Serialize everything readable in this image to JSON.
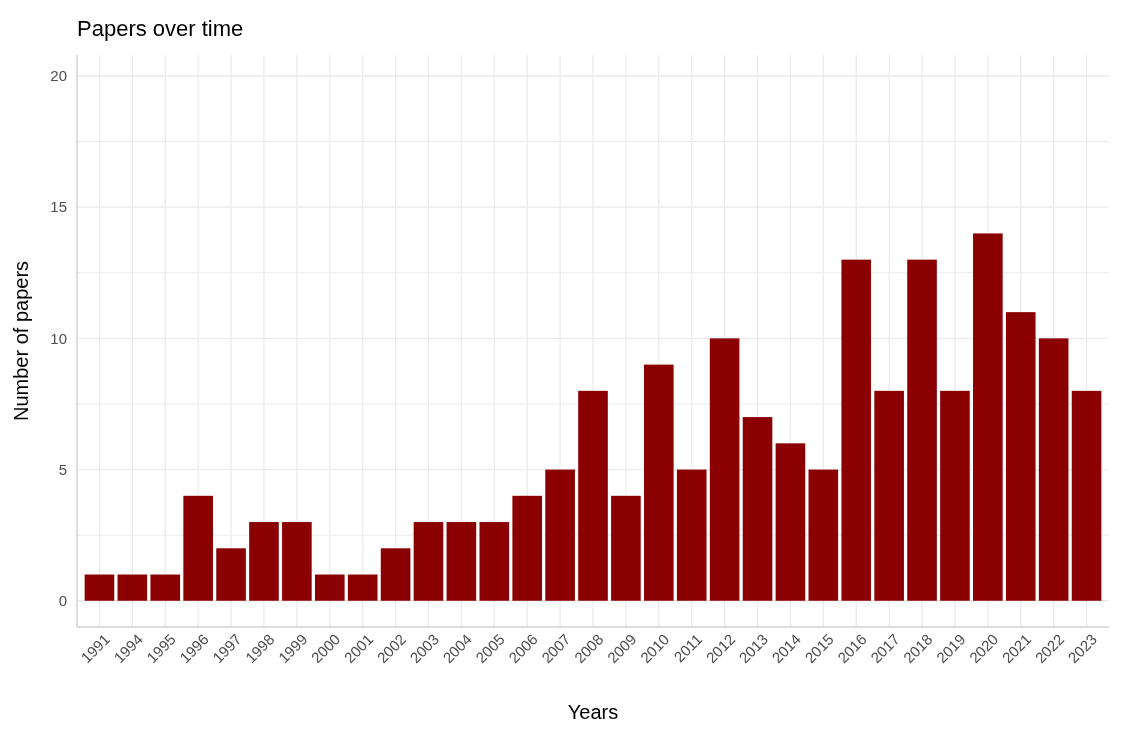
{
  "chart_data": {
    "type": "bar",
    "title": "Papers over time",
    "xlabel": "Years",
    "ylabel": "Number of papers",
    "categories": [
      "1991",
      "1994",
      "1995",
      "1996",
      "1997",
      "1998",
      "1999",
      "2000",
      "2001",
      "2002",
      "2003",
      "2004",
      "2005",
      "2006",
      "2007",
      "2008",
      "2009",
      "2010",
      "2011",
      "2012",
      "2013",
      "2014",
      "2015",
      "2016",
      "2017",
      "2018",
      "2019",
      "2020",
      "2021",
      "2022",
      "2023"
    ],
    "values": [
      1,
      1,
      1,
      4,
      2,
      3,
      3,
      1,
      1,
      2,
      3,
      3,
      3,
      4,
      5,
      8,
      4,
      9,
      5,
      10,
      7,
      6,
      5,
      13,
      8,
      13,
      8,
      14,
      11,
      10,
      8
    ],
    "color": "#8b0000",
    "ylim": [
      -1,
      20.8
    ],
    "yticks": [
      0,
      {
        "value": 2.5,
        "label": null
      },
      5,
      {
        "value": 7.5,
        "label": null
      },
      10,
      {
        "value": 12.5,
        "label": null
      },
      15,
      {
        "value": 17.5,
        "label": null
      },
      20
    ],
    "grid": true
  }
}
